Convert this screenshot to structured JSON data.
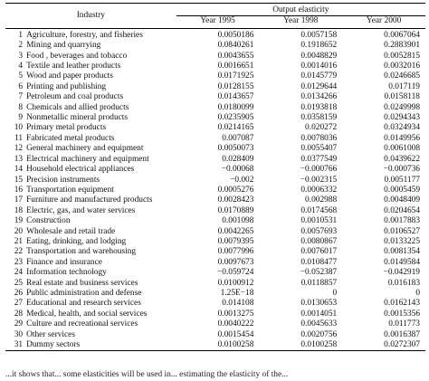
{
  "table": {
    "header": {
      "industry": "Industry",
      "group": "Output elasticity",
      "years": [
        "Year 1995",
        "Year 1998",
        "Year 2000"
      ]
    },
    "rows": [
      {
        "no": "1",
        "name": "Agriculture, forestry, and fisheries",
        "v1995": "0.0050186",
        "v1998": "0.0057158",
        "v2000": "0.0067064"
      },
      {
        "no": "2",
        "name": "Mining and quarrying",
        "v1995": "0.0840261",
        "v1998": "0.1918652",
        "v2000": "0.2883901"
      },
      {
        "no": "3",
        "name": "Food , beverages and tobacco",
        "v1995": "0.0043655",
        "v1998": "0.0048829",
        "v2000": "0.0052815"
      },
      {
        "no": "4",
        "name": "Textile and leather products",
        "v1995": "0.0016651",
        "v1998": "0.0014016",
        "v2000": "0.0032016"
      },
      {
        "no": "5",
        "name": "Wood and paper products",
        "v1995": "0.0171925",
        "v1998": "0.0145779",
        "v2000": "0.0246685"
      },
      {
        "no": "6",
        "name": "Printing and publishing",
        "v1995": "0.0128155",
        "v1998": "0.0129644",
        "v2000": "0.017119"
      },
      {
        "no": "7",
        "name": "Petroleum and coal products",
        "v1995": "0.0143657",
        "v1998": "0.0134266",
        "v2000": "0.0158118"
      },
      {
        "no": "8",
        "name": "Chemicals and allied products",
        "v1995": "0.0180099",
        "v1998": "0.0193818",
        "v2000": "0.0249998"
      },
      {
        "no": "9",
        "name": "Nonmetallic mineral products",
        "v1995": "0.0235905",
        "v1998": "0.0358159",
        "v2000": "0.0294343"
      },
      {
        "no": "10",
        "name": "Primary metal products",
        "v1995": "0.0214165",
        "v1998": "0.020272",
        "v2000": "0.0324934"
      },
      {
        "no": "11",
        "name": "Fabricated metal products",
        "v1995": "0.007087",
        "v1998": "0.0078036",
        "v2000": "0.0149956"
      },
      {
        "no": "12",
        "name": "General machinery and equipment",
        "v1995": "0.0050073",
        "v1998": "0.0055407",
        "v2000": "0.0061008"
      },
      {
        "no": "13",
        "name": "Electrical machinery and equipment",
        "v1995": "0.028409",
        "v1998": "0.0377549",
        "v2000": "0.0439622"
      },
      {
        "no": "14",
        "name": "Household electrical appliances",
        "v1995": "−0.00068",
        "v1998": "−0.000766",
        "v2000": "−0.000736"
      },
      {
        "no": "15",
        "name": "Precision instruments",
        "v1995": "−0.002",
        "v1998": "−0.002315",
        "v2000": "0.0051177"
      },
      {
        "no": "16",
        "name": "Transportation equipment",
        "v1995": "0.0005276",
        "v1998": "0.0006332",
        "v2000": "0.0005459"
      },
      {
        "no": "17",
        "name": "Furniture and manufactured products",
        "v1995": "0.0028423",
        "v1998": "0.002988",
        "v2000": "0.0048409"
      },
      {
        "no": "18",
        "name": "Electric, gas, and water services",
        "v1995": "0.0170889",
        "v1998": "0.0174568",
        "v2000": "0.0204654"
      },
      {
        "no": "19",
        "name": "Construction",
        "v1995": "0.001098",
        "v1998": "0.0010531",
        "v2000": "0.0017883"
      },
      {
        "no": "20",
        "name": "Wholesale and retail trade",
        "v1995": "0.0042265",
        "v1998": "0.0057693",
        "v2000": "0.0106527"
      },
      {
        "no": "21",
        "name": "Eating, drinking, and lodging",
        "v1995": "0.0079395",
        "v1998": "0.0080867",
        "v2000": "0.0133225"
      },
      {
        "no": "22",
        "name": "Transportation and warehousing",
        "v1995": "0.0077996",
        "v1998": "0.0076017",
        "v2000": "0.0081354"
      },
      {
        "no": "23",
        "name": "Finance and insurance",
        "v1995": "0.0097673",
        "v1998": "0.0108477",
        "v2000": "0.0149584"
      },
      {
        "no": "24",
        "name": "Information technology",
        "v1995": "−0.059724",
        "v1998": "−0.052387",
        "v2000": "−0.042919"
      },
      {
        "no": "25",
        "name": "Real estate and business services",
        "v1995": "0.0100912",
        "v1998": "0.0118857",
        "v2000": "0.016183"
      },
      {
        "no": "26",
        "name": "Public administration and defense",
        "v1995": "1.25E−18",
        "v1998": "0",
        "v2000": "0"
      },
      {
        "no": "27",
        "name": "Educational and research services",
        "v1995": "0.014108",
        "v1998": "0.0130653",
        "v2000": "0.0162143"
      },
      {
        "no": "28",
        "name": "Medical, health, and social services",
        "v1995": "0.0013275",
        "v1998": "0.0014051",
        "v2000": "0.0015356"
      },
      {
        "no": "29",
        "name": "Culture and recreational services",
        "v1995": "0.0040222",
        "v1998": "0.0045633",
        "v2000": "0.011773"
      },
      {
        "no": "30",
        "name": "Other services",
        "v1995": "0.0015454",
        "v1998": "0.0020756",
        "v2000": "0.0016387"
      },
      {
        "no": "31",
        "name": "Dummy sectors",
        "v1995": "0.0100258",
        "v1998": "0.0100258",
        "v2000": "0.0272307"
      }
    ]
  },
  "footer_text": "...it shows that... some elasticities will be used in... estimating the elasticity of the..."
}
